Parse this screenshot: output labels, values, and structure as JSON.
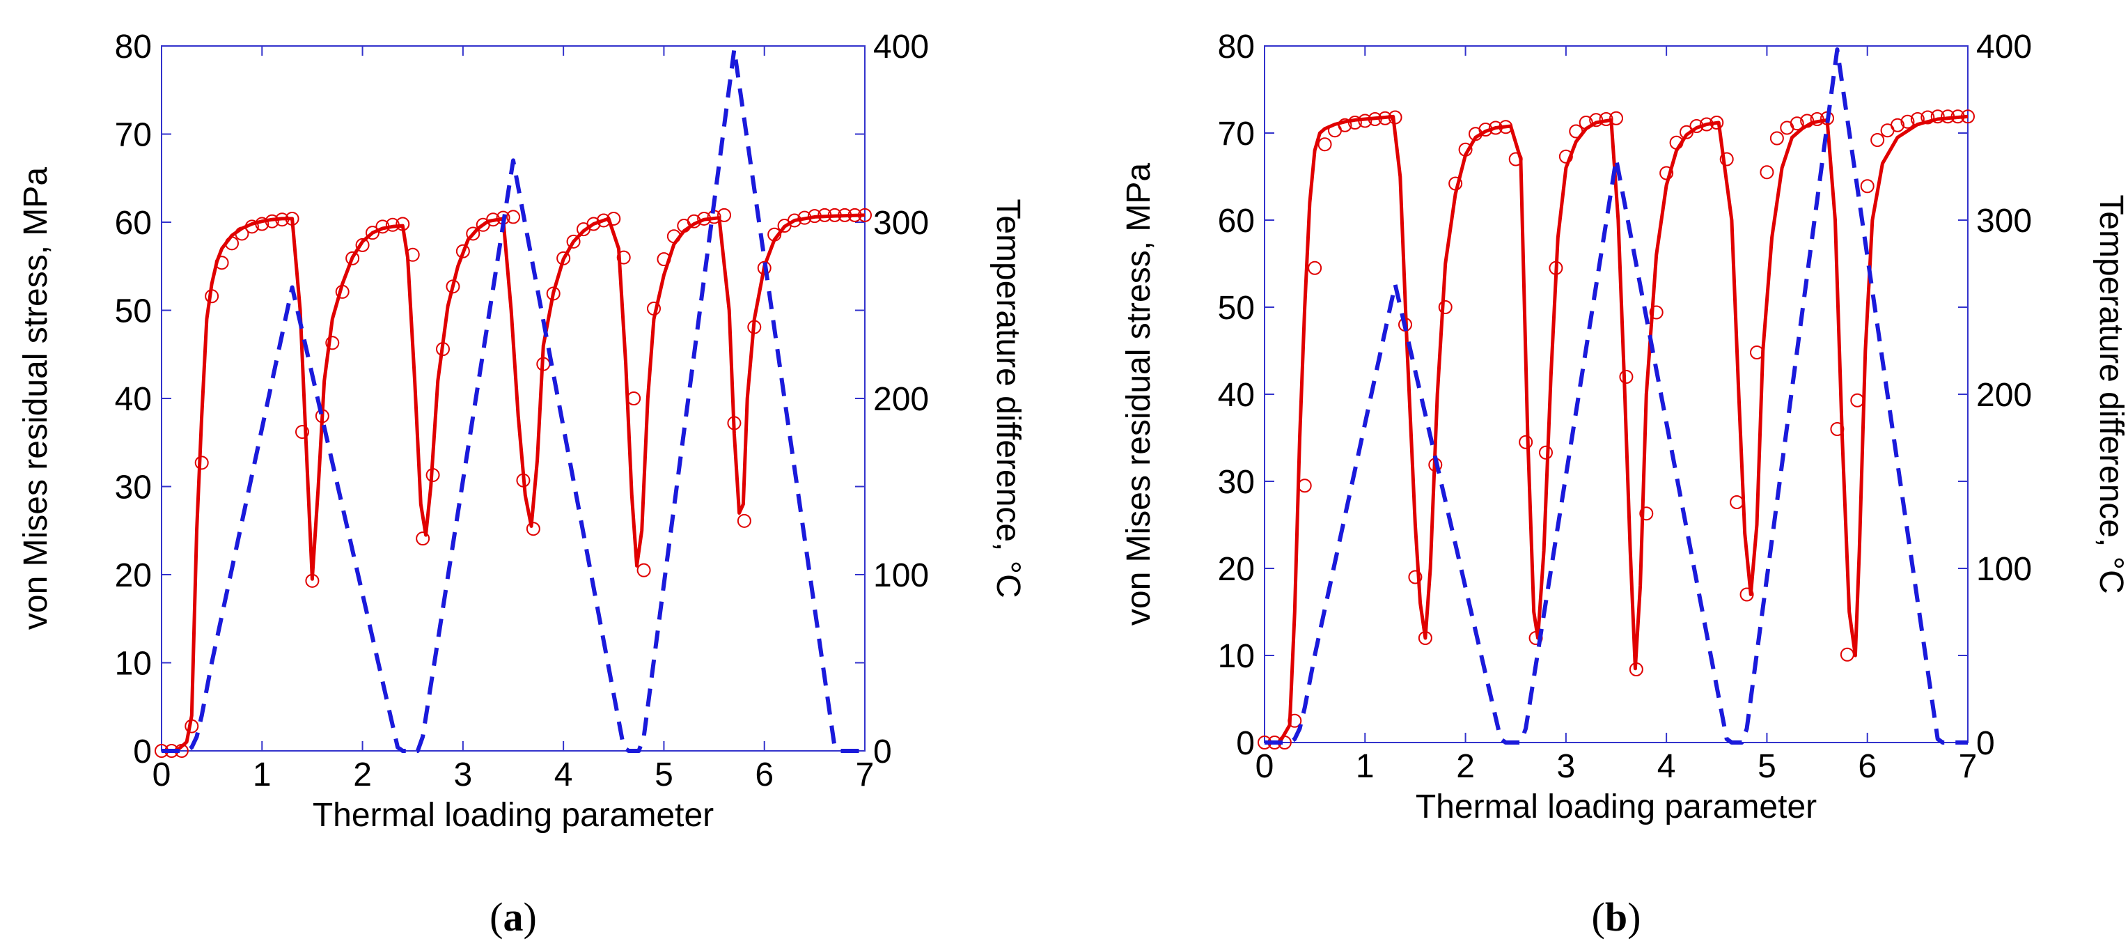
{
  "chart_data": [
    {
      "type": "line",
      "panel_label": "a",
      "xlabel": "Thermal loading parameter",
      "ylabel": "von Mises residual stress, MPa",
      "y2label": "Temperature difference, °C",
      "xlim": [
        0,
        7
      ],
      "ylim": [
        0,
        80
      ],
      "y2lim": [
        0,
        400
      ],
      "xticks": [
        0,
        1,
        2,
        3,
        4,
        5,
        6,
        7
      ],
      "yticks": [
        0,
        10,
        20,
        30,
        40,
        50,
        60,
        70,
        80
      ],
      "y2ticks": [
        0,
        100,
        200,
        300,
        400
      ],
      "colors": {
        "stress": "#e00000",
        "temperature": "#1a1adb",
        "axes": "#3333cc"
      },
      "series": [
        {
          "name": "stress_line",
          "axis": "left",
          "style": "solid",
          "x": [
            0,
            0.15,
            0.25,
            0.3,
            0.35,
            0.4,
            0.45,
            0.5,
            0.55,
            0.6,
            0.7,
            0.8,
            0.9,
            1.0,
            1.1,
            1.2,
            1.3,
            1.38,
            1.45,
            1.5,
            1.56,
            1.62,
            1.7,
            1.8,
            1.9,
            2.0,
            2.1,
            2.2,
            2.3,
            2.4,
            2.45,
            2.52,
            2.58,
            2.63,
            2.68,
            2.75,
            2.85,
            2.95,
            3.05,
            3.15,
            3.25,
            3.4,
            3.48,
            3.55,
            3.62,
            3.68,
            3.74,
            3.8,
            3.9,
            4.0,
            4.1,
            4.2,
            4.3,
            4.45,
            4.55,
            4.62,
            4.68,
            4.73,
            4.78,
            4.84,
            4.9,
            5.0,
            5.1,
            5.2,
            5.3,
            5.4,
            5.55,
            5.65,
            5.7,
            5.75,
            5.79,
            5.83,
            5.9,
            6.0,
            6.1,
            6.2,
            6.3,
            6.5,
            6.7,
            7.0
          ],
          "y": [
            0,
            0,
            1,
            4,
            25,
            38,
            49,
            53,
            55.5,
            57,
            58.5,
            59.3,
            59.8,
            60.1,
            60.3,
            60.4,
            60.4,
            50,
            32,
            19.5,
            30,
            42,
            49,
            53,
            56,
            57.8,
            58.8,
            59.3,
            59.5,
            59.6,
            56,
            42,
            28,
            24.5,
            30,
            42,
            50.5,
            55,
            58,
            59.3,
            60.1,
            60.4,
            50,
            38,
            29,
            25.5,
            33,
            46,
            52,
            55.8,
            57.8,
            59,
            59.8,
            60.4,
            57,
            44,
            29,
            21,
            25,
            40,
            49,
            54,
            57.5,
            59,
            59.8,
            60.3,
            60.5,
            50,
            36,
            27,
            28,
            40,
            49,
            55,
            58,
            59.5,
            60.2,
            60.6,
            60.7,
            60.8
          ]
        },
        {
          "name": "stress_markers",
          "axis": "left",
          "style": "circle",
          "x": [
            0,
            0.1,
            0.2,
            0.3,
            0.4,
            0.5,
            0.6,
            0.7,
            0.8,
            0.9,
            1.0,
            1.1,
            1.2,
            1.3,
            1.4,
            1.5,
            1.6,
            1.7,
            1.8,
            1.9,
            2.0,
            2.1,
            2.2,
            2.3,
            2.4,
            2.5,
            2.6,
            2.7,
            2.8,
            2.9,
            3.0,
            3.1,
            3.2,
            3.3,
            3.4,
            3.5,
            3.6,
            3.7,
            3.8,
            3.9,
            4.0,
            4.1,
            4.2,
            4.3,
            4.4,
            4.5,
            4.6,
            4.7,
            4.8,
            4.9,
            5.0,
            5.1,
            5.2,
            5.3,
            5.4,
            5.5,
            5.6,
            5.7,
            5.8,
            5.9,
            6.0,
            6.1,
            6.2,
            6.3,
            6.4,
            6.5,
            6.6,
            6.7,
            6.8,
            6.9,
            7.0
          ],
          "y": [
            0,
            0,
            0,
            2.8,
            32.7,
            51.6,
            55.4,
            57.6,
            58.7,
            59.5,
            59.8,
            60.1,
            60.3,
            60.4,
            36.2,
            19.3,
            38,
            46.3,
            52.1,
            55.9,
            57.4,
            58.8,
            59.5,
            59.7,
            59.8,
            56.3,
            24.1,
            31.3,
            45.6,
            52.7,
            56.7,
            58.7,
            59.7,
            60.3,
            60.5,
            60.6,
            30.7,
            25.2,
            43.9,
            51.9,
            55.9,
            57.8,
            59.2,
            59.8,
            60.2,
            60.4,
            56,
            40,
            20.5,
            50.2,
            55.8,
            58.4,
            59.6,
            60.1,
            60.4,
            60.6,
            60.8,
            37.2,
            26.1,
            48.1,
            54.8,
            58.6,
            59.6,
            60.2,
            60.5,
            60.7,
            60.8,
            60.8,
            60.8,
            60.8,
            60.8
          ]
        },
        {
          "name": "temperature",
          "axis": "right",
          "style": "dashed",
          "x": [
            0,
            0.25,
            0.3,
            0.35,
            0.4,
            0.5,
            1.3,
            2.35,
            2.4,
            2.55,
            2.6,
            3.5,
            4.6,
            4.65,
            4.75,
            4.8,
            5.7,
            6.7,
            6.75,
            7.0
          ],
          "y": [
            0,
            0,
            2,
            8,
            20,
            50,
            263,
            2,
            0,
            0,
            8,
            335,
            2,
            0,
            0,
            8,
            398,
            2,
            0,
            0
          ]
        }
      ]
    },
    {
      "type": "line",
      "panel_label": "b",
      "xlabel": "Thermal loading parameter",
      "ylabel": "von Mises residual stress, MPa",
      "y2label": "Temperature difference, °C",
      "xlim": [
        0,
        7
      ],
      "ylim": [
        0,
        80
      ],
      "y2lim": [
        0,
        400
      ],
      "xticks": [
        0,
        1,
        2,
        3,
        4,
        5,
        6,
        7
      ],
      "yticks": [
        0,
        10,
        20,
        30,
        40,
        50,
        60,
        70,
        80
      ],
      "y2ticks": [
        0,
        100,
        200,
        300,
        400
      ],
      "colors": {
        "stress": "#e00000",
        "temperature": "#1a1adb",
        "axes": "#3333cc"
      },
      "series": [
        {
          "name": "stress_line",
          "axis": "left",
          "style": "solid",
          "x": [
            0,
            0.15,
            0.25,
            0.3,
            0.35,
            0.4,
            0.45,
            0.5,
            0.55,
            0.6,
            0.7,
            0.8,
            0.9,
            1.0,
            1.1,
            1.2,
            1.28,
            1.35,
            1.42,
            1.5,
            1.55,
            1.6,
            1.65,
            1.72,
            1.8,
            1.9,
            2.0,
            2.1,
            2.2,
            2.3,
            2.45,
            2.55,
            2.62,
            2.68,
            2.72,
            2.78,
            2.85,
            2.92,
            3.0,
            3.1,
            3.2,
            3.3,
            3.45,
            3.52,
            3.58,
            3.64,
            3.69,
            3.74,
            3.8,
            3.9,
            4.0,
            4.1,
            4.2,
            4.3,
            4.4,
            4.52,
            4.65,
            4.72,
            4.78,
            4.84,
            4.9,
            4.96,
            5.05,
            5.15,
            5.25,
            5.35,
            5.45,
            5.6,
            5.68,
            5.75,
            5.82,
            5.88,
            5.92,
            5.98,
            6.05,
            6.15,
            6.3,
            6.5,
            6.7,
            7.0
          ],
          "y": [
            0,
            0,
            2,
            15,
            35,
            50,
            62,
            68,
            70,
            70.5,
            71,
            71.3,
            71.5,
            71.6,
            71.7,
            71.8,
            71.9,
            65,
            45,
            25,
            16,
            12,
            20,
            40,
            55,
            63,
            67.5,
            69.5,
            70.2,
            70.6,
            70.8,
            67,
            35,
            15,
            12,
            22,
            42,
            58,
            66,
            69,
            70.5,
            71.2,
            71.5,
            60,
            42,
            22,
            8.5,
            18,
            40,
            56,
            64,
            68,
            69.8,
            70.6,
            71,
            71.2,
            60,
            40,
            24,
            17,
            25,
            45,
            58,
            66,
            69.5,
            70.5,
            71.2,
            71.5,
            60,
            35,
            15,
            10,
            22,
            45,
            60,
            66.5,
            69.5,
            71,
            71.6,
            71.9
          ]
        },
        {
          "name": "stress_markers",
          "axis": "left",
          "style": "circle",
          "x": [
            0,
            0.1,
            0.2,
            0.3,
            0.4,
            0.5,
            0.6,
            0.7,
            0.8,
            0.9,
            1.0,
            1.1,
            1.2,
            1.3,
            1.4,
            1.5,
            1.6,
            1.7,
            1.8,
            1.9,
            2.0,
            2.1,
            2.2,
            2.3,
            2.4,
            2.5,
            2.6,
            2.7,
            2.8,
            2.9,
            3.0,
            3.1,
            3.2,
            3.3,
            3.4,
            3.5,
            3.6,
            3.7,
            3.8,
            3.9,
            4.0,
            4.1,
            4.2,
            4.3,
            4.4,
            4.5,
            4.6,
            4.7,
            4.8,
            4.9,
            5.0,
            5.1,
            5.2,
            5.3,
            5.4,
            5.5,
            5.6,
            5.7,
            5.8,
            5.9,
            6.0,
            6.1,
            6.2,
            6.3,
            6.4,
            6.5,
            6.6,
            6.7,
            6.8,
            6.9,
            7.0
          ],
          "y": [
            0,
            0,
            0,
            2.5,
            29.5,
            54.5,
            68.7,
            70.3,
            70.9,
            71.2,
            71.4,
            71.6,
            71.7,
            71.8,
            48,
            19,
            12,
            31.9,
            50,
            64.2,
            68.1,
            69.9,
            70.4,
            70.6,
            70.7,
            67,
            34.5,
            12,
            33.3,
            54.5,
            67.3,
            70.2,
            71.2,
            71.5,
            71.6,
            71.7,
            42,
            8.4,
            26.3,
            49.4,
            65.4,
            68.9,
            70.1,
            70.8,
            71,
            71.2,
            67,
            27.6,
            17,
            44.8,
            65.5,
            69.4,
            70.6,
            71.1,
            71.4,
            71.6,
            71.7,
            36,
            10.1,
            39.3,
            63.9,
            69.2,
            70.3,
            70.9,
            71.3,
            71.6,
            71.8,
            71.9,
            71.9,
            71.9,
            71.9
          ]
        },
        {
          "name": "temperature",
          "axis": "right",
          "style": "dashed",
          "x": [
            0,
            0.25,
            0.3,
            0.35,
            0.4,
            0.5,
            1.3,
            2.35,
            2.4,
            2.55,
            2.6,
            3.5,
            4.6,
            4.65,
            4.75,
            4.8,
            5.7,
            6.7,
            6.75,
            7.0
          ],
          "y": [
            0,
            0,
            2,
            8,
            20,
            50,
            263,
            2,
            0,
            0,
            8,
            335,
            2,
            0,
            0,
            8,
            398,
            2,
            0,
            0
          ]
        }
      ]
    }
  ]
}
